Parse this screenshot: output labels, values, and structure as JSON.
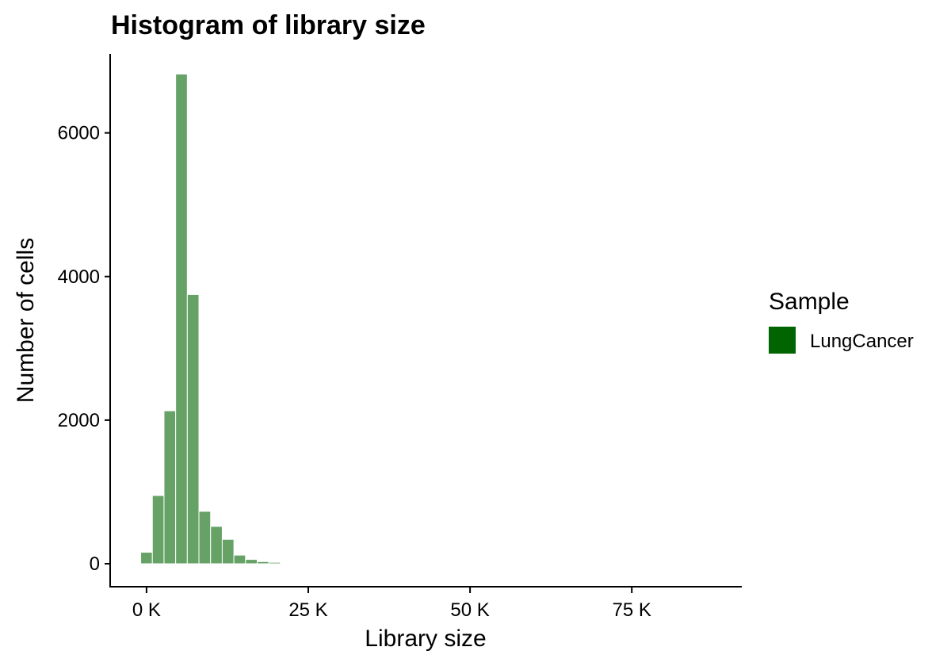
{
  "chart_data": {
    "type": "bar",
    "title": "Histogram of library size",
    "xlabel": "Library size",
    "ylabel": "Number of cells",
    "bin_width": 1800,
    "bin_start": 0,
    "bins": [
      {
        "x": 0,
        "count": 160
      },
      {
        "x": 1800,
        "count": 950
      },
      {
        "x": 3600,
        "count": 2130
      },
      {
        "x": 5400,
        "count": 6820
      },
      {
        "x": 7200,
        "count": 3750
      },
      {
        "x": 9000,
        "count": 730
      },
      {
        "x": 10800,
        "count": 520
      },
      {
        "x": 12600,
        "count": 340
      },
      {
        "x": 14400,
        "count": 120
      },
      {
        "x": 16200,
        "count": 60
      },
      {
        "x": 18000,
        "count": 30
      },
      {
        "x": 19800,
        "count": 20
      },
      {
        "x": 21600,
        "count": 5
      },
      {
        "x": 23400,
        "count": 3
      },
      {
        "x": 25200,
        "count": 2
      },
      {
        "x": 27000,
        "count": 1
      },
      {
        "x": 28800,
        "count": 1
      },
      {
        "x": 30600,
        "count": 1
      }
    ],
    "xlim": [
      -5500,
      92000
    ],
    "ylim": [
      -320,
      7100
    ],
    "x_ticks": [
      {
        "value": 0,
        "label": "0 K"
      },
      {
        "value": 25000,
        "label": "25 K"
      },
      {
        "value": 50000,
        "label": "50 K"
      },
      {
        "value": 75000,
        "label": "75 K"
      }
    ],
    "y_ticks": [
      {
        "value": 0,
        "label": "0"
      },
      {
        "value": 2000,
        "label": "2000"
      },
      {
        "value": 4000,
        "label": "4000"
      },
      {
        "value": 6000,
        "label": "6000"
      }
    ],
    "legend": {
      "title": "Sample",
      "placement": "right",
      "entries": [
        {
          "label": "LungCancer",
          "color": "#006400"
        }
      ]
    },
    "bar_fill": "#006400",
    "bar_opacity": 0.6,
    "bar_outline": "#ffffff",
    "grid": false
  }
}
